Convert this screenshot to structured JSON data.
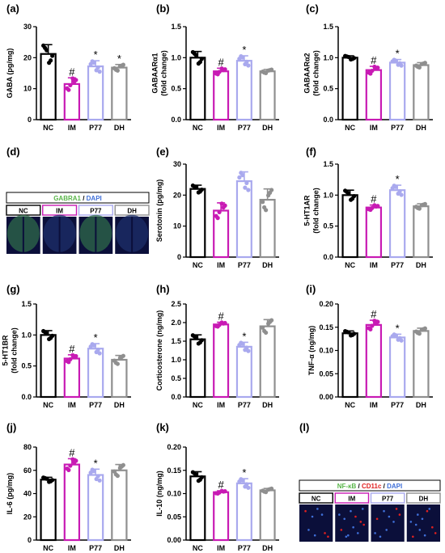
{
  "groups": [
    "NC",
    "IM",
    "P77",
    "DH"
  ],
  "group_colors": {
    "NC": "#000000",
    "IM": "#c81ab4",
    "P77": "#a9a9ee",
    "DH": "#8f8f8f"
  },
  "chart_data": [
    {
      "id": "a",
      "panel": "(a)",
      "type": "bar",
      "ylabel": [
        "GABA (pg/mg)"
      ],
      "ylim": [
        0,
        30
      ],
      "yticks": [
        "0",
        "10",
        "20",
        "30"
      ],
      "yticks_v": [
        0,
        10,
        20,
        30
      ],
      "categories": [
        "NC",
        "IM",
        "P77",
        "DH"
      ],
      "values": [
        21.2,
        11.5,
        17.2,
        16.8
      ],
      "errors": [
        3.0,
        2.0,
        1.8,
        1.0
      ],
      "markers": [
        "",
        "#",
        "*",
        "*"
      ]
    },
    {
      "id": "b",
      "panel": "(b)",
      "type": "bar",
      "ylabel": [
        "GABAARα1",
        "(fold change)"
      ],
      "ylim": [
        0,
        1.5
      ],
      "yticks": [
        "0.0",
        "0.5",
        "1.0",
        "1.5"
      ],
      "yticks_v": [
        0,
        0.5,
        1,
        1.5
      ],
      "categories": [
        "NC",
        "IM",
        "P77",
        "DH"
      ],
      "values": [
        1.0,
        0.78,
        0.95,
        0.78
      ],
      "errors": [
        0.1,
        0.05,
        0.08,
        0.03
      ],
      "markers": [
        "",
        "#",
        "*",
        ""
      ]
    },
    {
      "id": "c",
      "panel": "(c)",
      "type": "bar",
      "ylabel": [
        "GABAARα2",
        "(fold change)"
      ],
      "ylim": [
        0,
        1.5
      ],
      "yticks": [
        "0.0",
        "0.5",
        "1.0",
        "1.5"
      ],
      "yticks_v": [
        0,
        0.5,
        1,
        1.5
      ],
      "categories": [
        "NC",
        "IM",
        "P77",
        "DH"
      ],
      "values": [
        1.0,
        0.8,
        0.92,
        0.88
      ],
      "errors": [
        0.03,
        0.06,
        0.05,
        0.04
      ],
      "markers": [
        "",
        "#",
        "*",
        ""
      ]
    },
    {
      "id": "e",
      "panel": "(e)",
      "type": "bar",
      "ylabel": [
        "Serotonin (pg/mg)"
      ],
      "ylim": [
        0,
        30
      ],
      "yticks": [
        "0",
        "10",
        "20",
        "30"
      ],
      "yticks_v": [
        0,
        10,
        20,
        30
      ],
      "categories": [
        "NC",
        "IM",
        "P77",
        "DH"
      ],
      "values": [
        22.0,
        15.0,
        24.5,
        18.5
      ],
      "errors": [
        1.2,
        2.5,
        3.0,
        3.5
      ],
      "markers": [
        "",
        "",
        "",
        ""
      ]
    },
    {
      "id": "f",
      "panel": "(f)",
      "type": "bar",
      "ylabel": [
        "5-HT1AR",
        "(fold change)"
      ],
      "ylim": [
        0,
        1.5
      ],
      "yticks": [
        "0.0",
        "0.5",
        "1.0",
        "1.5"
      ],
      "yticks_v": [
        0,
        0.5,
        1,
        1.5
      ],
      "categories": [
        "NC",
        "IM",
        "P77",
        "DH"
      ],
      "values": [
        1.0,
        0.8,
        1.08,
        0.82
      ],
      "errors": [
        0.08,
        0.04,
        0.08,
        0.04
      ],
      "markers": [
        "",
        "#",
        "*",
        ""
      ]
    },
    {
      "id": "g",
      "panel": "(g)",
      "type": "bar",
      "ylabel": [
        "5-HT1BR",
        "(fold change)"
      ],
      "ylim": [
        0,
        1.5
      ],
      "yticks": [
        "0.0",
        "0.5",
        "1.0",
        "1.5"
      ],
      "yticks_v": [
        0,
        0.5,
        1,
        1.5
      ],
      "categories": [
        "NC",
        "IM",
        "P77",
        "DH"
      ],
      "values": [
        1.0,
        0.62,
        0.78,
        0.6
      ],
      "errors": [
        0.07,
        0.06,
        0.08,
        0.07
      ],
      "markers": [
        "",
        "#",
        "*",
        ""
      ]
    },
    {
      "id": "h",
      "panel": "(h)",
      "type": "bar",
      "ylabel": [
        "Corticosterone (ng/mg)"
      ],
      "ylim": [
        0,
        2.5
      ],
      "yticks": [
        "0.0",
        "0.5",
        "1.0",
        "1.5",
        "2.0",
        "2.5"
      ],
      "yticks_v": [
        0,
        0.5,
        1,
        1.5,
        2,
        2.5
      ],
      "categories": [
        "NC",
        "IM",
        "P77",
        "DH"
      ],
      "values": [
        1.55,
        1.95,
        1.35,
        1.9
      ],
      "errors": [
        0.12,
        0.06,
        0.12,
        0.18
      ],
      "markers": [
        "",
        "#",
        "*",
        ""
      ]
    },
    {
      "id": "i",
      "panel": "(i)",
      "type": "bar",
      "ylabel": [
        "TNF-α (ng/mg)"
      ],
      "ylim": [
        0,
        0.2
      ],
      "yticks": [
        "0.00",
        "0.05",
        "0.10",
        "0.15",
        "0.20"
      ],
      "yticks_v": [
        0,
        0.05,
        0.1,
        0.15,
        0.2
      ],
      "categories": [
        "NC",
        "IM",
        "P77",
        "DH"
      ],
      "values": [
        0.137,
        0.155,
        0.128,
        0.142
      ],
      "errors": [
        0.005,
        0.01,
        0.007,
        0.006
      ],
      "markers": [
        "",
        "#",
        "*",
        ""
      ]
    },
    {
      "id": "j",
      "panel": "(j)",
      "type": "bar",
      "ylabel": [
        "IL-6 (pg/mg)"
      ],
      "ylim": [
        0,
        80
      ],
      "yticks": [
        "0",
        "20",
        "40",
        "60",
        "80"
      ],
      "yticks_v": [
        0,
        20,
        40,
        60,
        80
      ],
      "categories": [
        "NC",
        "IM",
        "P77",
        "DH"
      ],
      "values": [
        52,
        65,
        56,
        60
      ],
      "errors": [
        2,
        5,
        5,
        5
      ],
      "markers": [
        "",
        "#",
        "*",
        ""
      ]
    },
    {
      "id": "k",
      "panel": "(k)",
      "type": "bar",
      "ylabel": [
        "IL-10 (ng/mg)"
      ],
      "ylim": [
        0,
        0.2
      ],
      "yticks": [
        "0.00",
        "0.05",
        "0.10",
        "0.15",
        "0.20"
      ],
      "yticks_v": [
        0,
        0.05,
        0.1,
        0.15,
        0.2
      ],
      "categories": [
        "NC",
        "IM",
        "P77",
        "DH"
      ],
      "values": [
        0.137,
        0.103,
        0.122,
        0.107
      ],
      "errors": [
        0.01,
        0.003,
        0.01,
        0.004
      ],
      "markers": [
        "",
        "#",
        "*",
        ""
      ]
    }
  ],
  "image_panels": [
    {
      "id": "d",
      "panel": "(d)",
      "legend": [
        {
          "text": "GABRA1",
          "color": "#58b548"
        },
        {
          "text": " / ",
          "color": "#000000"
        },
        {
          "text": "DAPI",
          "color": "#3f6fd8"
        }
      ],
      "labels": [
        "NC",
        "IM",
        "P77",
        "DH"
      ],
      "frame_colors": [
        "#000000",
        "#c81ab4",
        "#a9a9ee",
        "#8f8f8f"
      ]
    },
    {
      "id": "l",
      "panel": "(l)",
      "legend": [
        {
          "text": "NF-κB",
          "color": "#58b548"
        },
        {
          "text": " / ",
          "color": "#000000"
        },
        {
          "text": "CD11c",
          "color": "#e02020"
        },
        {
          "text": " / ",
          "color": "#000000"
        },
        {
          "text": "DAPI",
          "color": "#3f6fd8"
        }
      ],
      "labels": [
        "NC",
        "IM",
        "P77",
        "DH"
      ],
      "frame_colors": [
        "#000000",
        "#c81ab4",
        "#a9a9ee",
        "#8f8f8f"
      ]
    }
  ]
}
